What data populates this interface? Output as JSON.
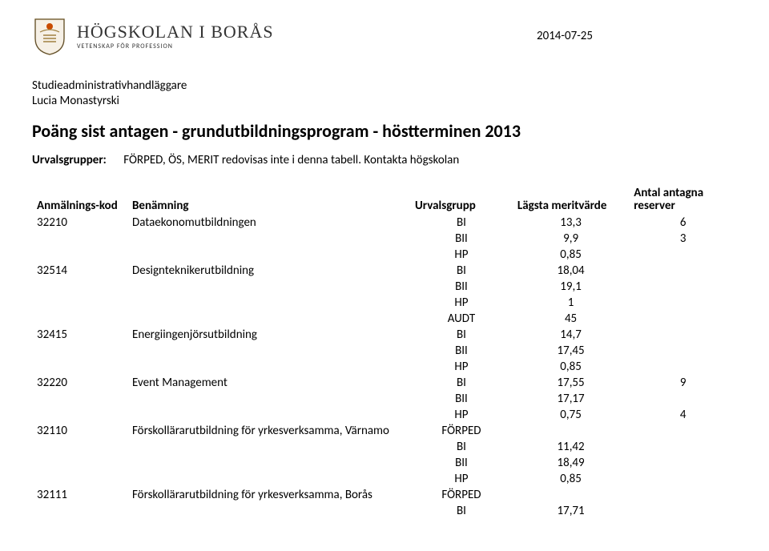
{
  "brand": {
    "main": "HÖGSKOLAN I BORÅS",
    "sub": "VETENSKAP FÖR PROFESSION",
    "crest_colors": {
      "fill": "#f6f0e6",
      "stroke": "#a08040",
      "accent": "#c94b00"
    }
  },
  "date": "2014-07-25",
  "meta_line1": "Studieadministrativhandläggare",
  "meta_line2": "Lucia Monastyrski",
  "title": "Poäng sist antagen - grundutbildningsprogram - höstterminen 2013",
  "note": {
    "label": "Urvalsgrupper:",
    "text": "FÖRPED, ÖS, MERIT redovisas inte i denna tabell. Kontakta högskolan"
  },
  "table": {
    "headers": {
      "code": "Anmälnings-kod",
      "name": "Benämning",
      "group": "Urvalsgrupp",
      "value": "Lägsta meritvärde",
      "reserve_l1": "Antal antagna",
      "reserve_l2": "reserver"
    },
    "rows": [
      {
        "code": "32210",
        "name": "Dataekonomutbildningen",
        "group": "BI",
        "value": "13,3",
        "reserve": "6"
      },
      {
        "code": "",
        "name": "",
        "group": "BII",
        "value": "9,9",
        "reserve": "3"
      },
      {
        "code": "",
        "name": "",
        "group": "HP",
        "value": "0,85",
        "reserve": ""
      },
      {
        "code": "32514",
        "name": "Designteknikerutbildning",
        "group": "BI",
        "value": "18,04",
        "reserve": ""
      },
      {
        "code": "",
        "name": "",
        "group": "BII",
        "value": "19,1",
        "reserve": ""
      },
      {
        "code": "",
        "name": "",
        "group": "HP",
        "value": "1",
        "reserve": ""
      },
      {
        "code": "",
        "name": "",
        "group": "AUDT",
        "value": "45",
        "reserve": ""
      },
      {
        "code": "32415",
        "name": "Energiingenjörsutbildning",
        "group": "BI",
        "value": "14,7",
        "reserve": ""
      },
      {
        "code": "",
        "name": "",
        "group": "BII",
        "value": "17,45",
        "reserve": ""
      },
      {
        "code": "",
        "name": "",
        "group": "HP",
        "value": "0,85",
        "reserve": ""
      },
      {
        "code": "32220",
        "name": "Event Management",
        "group": "BI",
        "value": "17,55",
        "reserve": "9"
      },
      {
        "code": "",
        "name": "",
        "group": "BII",
        "value": "17,17",
        "reserve": ""
      },
      {
        "code": "",
        "name": "",
        "group": "HP",
        "value": "0,75",
        "reserve": "4"
      },
      {
        "code": "32110",
        "name": "Förskollärarutbildning för yrkesverksamma, Värnamo",
        "group": "FÖRPED",
        "value": "",
        "reserve": ""
      },
      {
        "code": "",
        "name": "",
        "group": "BI",
        "value": "11,42",
        "reserve": ""
      },
      {
        "code": "",
        "name": "",
        "group": "BII",
        "value": "18,49",
        "reserve": ""
      },
      {
        "code": "",
        "name": "",
        "group": "HP",
        "value": "0,85",
        "reserve": ""
      },
      {
        "code": "32111",
        "name": "Förskollärarutbildning för yrkesverksamma, Borås",
        "group": "FÖRPED",
        "value": "",
        "reserve": ""
      },
      {
        "code": "",
        "name": "",
        "group": "BI",
        "value": "17,71",
        "reserve": ""
      }
    ]
  }
}
